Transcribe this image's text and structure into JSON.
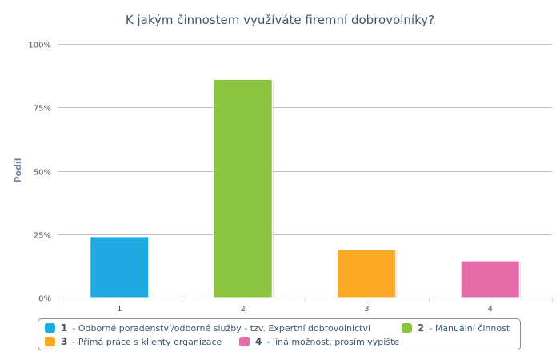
{
  "chart_data": {
    "type": "bar",
    "title": "K jakým činnostem využíváte firemní dobrovolníky?",
    "ylabel": "Podíl",
    "xlabel": "",
    "ylim": [
      0,
      100
    ],
    "yticks": [
      "0%",
      "25%",
      "50%",
      "75%",
      "100%"
    ],
    "categories": [
      "1",
      "2",
      "3",
      "4"
    ],
    "values": [
      24,
      86,
      19,
      14.5
    ],
    "colors": [
      "#1ea9e1",
      "#8bc53f",
      "#fba825",
      "#e56ba9"
    ],
    "grid": true,
    "legend_position": "bottom",
    "legend": [
      {
        "num": "1",
        "label": "- Odborné poradenství/odborné služby - tzv. Expertní dobrovolnictví",
        "color": "#1ea9e1"
      },
      {
        "num": "2",
        "label": "- Manuální činnost",
        "color": "#8bc53f"
      },
      {
        "num": "3",
        "label": "- Přímá práce s klienty organizace",
        "color": "#fba825"
      },
      {
        "num": "4",
        "label": "- Jiná možnost, prosím vypište",
        "color": "#e56ba9"
      }
    ]
  }
}
